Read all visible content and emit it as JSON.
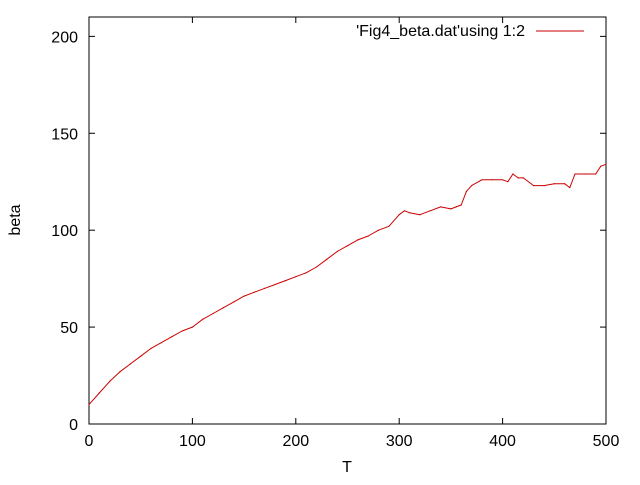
{
  "chart_data": {
    "type": "line",
    "title": "",
    "xlabel": "T",
    "ylabel": "beta",
    "xlim": [
      0,
      500
    ],
    "ylim": [
      0,
      210
    ],
    "x_ticks": [
      0,
      100,
      200,
      300,
      400,
      500
    ],
    "y_ticks": [
      0,
      50,
      100,
      150,
      200
    ],
    "x_tick_labels": [
      "0",
      "100",
      "200",
      "300",
      "400",
      "500"
    ],
    "y_tick_labels": [
      "0",
      "50",
      "100",
      "150",
      "200"
    ],
    "grid": false,
    "legend_position": "top-right",
    "series": [
      {
        "name": "'Fig4_beta.dat'using 1:2",
        "color": "#cc0000",
        "x": [
          0,
          10,
          20,
          30,
          40,
          50,
          60,
          70,
          80,
          90,
          100,
          110,
          120,
          130,
          140,
          150,
          160,
          170,
          180,
          190,
          200,
          210,
          220,
          230,
          240,
          250,
          260,
          270,
          280,
          290,
          300,
          305,
          310,
          320,
          330,
          340,
          350,
          355,
          360,
          365,
          370,
          380,
          390,
          400,
          405,
          410,
          415,
          420,
          430,
          440,
          450,
          460,
          465,
          470,
          480,
          490,
          495,
          500
        ],
        "y": [
          10,
          16,
          22,
          27,
          31,
          35,
          39,
          42,
          45,
          48,
          50,
          54,
          57,
          60,
          63,
          66,
          68,
          70,
          72,
          74,
          76,
          78,
          81,
          85,
          89,
          92,
          95,
          97,
          100,
          102,
          108,
          110,
          109,
          108,
          110,
          112,
          111,
          112,
          113,
          120,
          123,
          126,
          126,
          126,
          125,
          129,
          127,
          127,
          123,
          123,
          124,
          124,
          122,
          129,
          129,
          129,
          133,
          134
        ]
      }
    ]
  }
}
